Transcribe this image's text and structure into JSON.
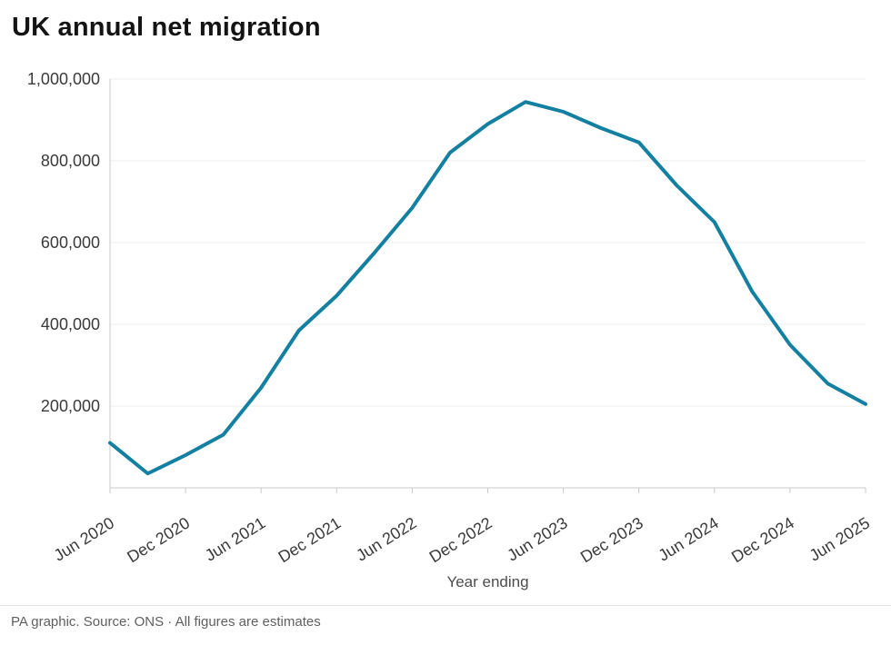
{
  "page": {
    "title": "UK annual net migration",
    "footer_note": "PA graphic. Source: ONS · All figures are estimates"
  },
  "chart_data": {
    "type": "line",
    "title": "UK annual net migration",
    "xlabel": "Year ending",
    "ylabel": "",
    "ylim": [
      0,
      1000000
    ],
    "yticks": [
      200000,
      400000,
      600000,
      800000,
      1000000
    ],
    "grid": true,
    "legend": "none",
    "line_color": "#1380a1",
    "x": [
      "Jun 2020",
      "Sep 2020",
      "Dec 2020",
      "Mar 2021",
      "Jun 2021",
      "Sep 2021",
      "Dec 2021",
      "Mar 2022",
      "Jun 2022",
      "Sep 2022",
      "Dec 2022",
      "Mar 2023",
      "Jun 2023",
      "Sep 2023",
      "Dec 2023",
      "Mar 2024",
      "Jun 2024",
      "Sep 2024",
      "Dec 2024",
      "Mar 2025",
      "Jun 2025"
    ],
    "values": [
      110000,
      35000,
      80000,
      130000,
      245000,
      385000,
      470000,
      575000,
      685000,
      820000,
      890000,
      944000,
      920000,
      880000,
      845000,
      740000,
      650000,
      480000,
      350000,
      255000,
      205000
    ],
    "xtick_every": 2,
    "xtick_labels": [
      "Jun 2020",
      "Dec 2020",
      "Jun 2021",
      "Dec 2021",
      "Jun 2022",
      "Dec 2022",
      "Jun 2023",
      "Dec 2023",
      "Jun 2024",
      "Dec 2024",
      "Jun 2025"
    ]
  },
  "colors": {
    "line": "#1380a1",
    "axis": "#c9c9c9",
    "gridline": "#ececec",
    "tick_label": "#3a3a3a",
    "title_text": "#141414",
    "footer_text": "#5f5f5f"
  }
}
